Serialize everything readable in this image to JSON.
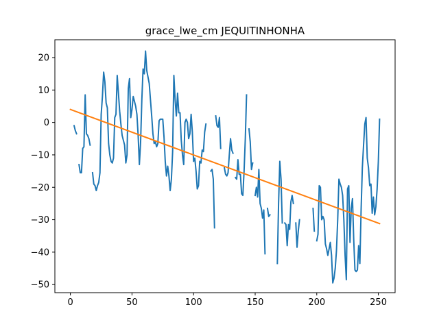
{
  "chart_data": {
    "type": "line",
    "title": "grace_lwe_cm JEQUITINHONHA",
    "xlabel": "",
    "ylabel": "",
    "xlim": [
      -12.6,
      263.6
    ],
    "ylim": [
      -52.5,
      25.5
    ],
    "xticks": [
      0,
      50,
      100,
      150,
      200,
      250
    ],
    "yticks": [
      -50,
      -40,
      -30,
      -20,
      -10,
      0,
      10,
      20
    ],
    "grid": false,
    "series": [
      {
        "color": "#1f77b4",
        "points": [
          [
            3,
            -1
          ],
          [
            4,
            -2.5
          ],
          [
            5,
            -3.5
          ],
          null,
          [
            7,
            -13
          ],
          [
            8,
            -15.5
          ],
          [
            9,
            -15.5
          ],
          [
            10,
            -8
          ],
          [
            11,
            -7.5
          ],
          [
            12,
            8.5
          ],
          [
            13,
            -3.5
          ],
          [
            14,
            -4
          ],
          [
            15,
            -5
          ],
          [
            16,
            -7
          ],
          null,
          [
            18,
            -15.5
          ],
          [
            19,
            -19
          ],
          [
            20,
            -19.5
          ],
          [
            21,
            -21
          ],
          [
            22,
            -19.5
          ],
          [
            23,
            -18.5
          ],
          [
            24,
            -15.5
          ],
          [
            25,
            2.5
          ],
          [
            26,
            8
          ],
          [
            27,
            15.5
          ],
          [
            28,
            12.5
          ],
          [
            29,
            6
          ],
          [
            30,
            4.5
          ],
          [
            31,
            -6.5
          ],
          [
            32,
            -10
          ],
          [
            33,
            -12
          ],
          [
            34,
            -12.5
          ],
          [
            35,
            -11
          ],
          [
            36,
            1.5
          ],
          [
            37,
            2.5
          ],
          [
            38,
            14.5
          ],
          [
            39,
            9
          ],
          [
            40,
            3.5
          ],
          [
            41,
            -0.5
          ],
          [
            42,
            -4
          ],
          [
            43,
            -5.5
          ],
          [
            44,
            -7
          ],
          [
            45,
            -12.5
          ],
          [
            46,
            -10
          ],
          [
            47,
            10.5
          ],
          [
            48,
            13.5
          ],
          [
            49,
            1.5
          ],
          [
            50,
            4
          ],
          [
            51,
            8
          ],
          [
            52,
            6.5
          ],
          [
            53,
            5
          ],
          [
            54,
            2.5
          ],
          [
            55,
            -4
          ],
          [
            56,
            -13
          ],
          [
            57,
            -6
          ],
          [
            58,
            7
          ],
          [
            59,
            16.5
          ],
          [
            60,
            15
          ],
          [
            61,
            22
          ],
          [
            62,
            16
          ],
          [
            63,
            14
          ],
          [
            64,
            12
          ],
          [
            65,
            7
          ],
          [
            66,
            2
          ],
          [
            67,
            -3.5
          ],
          [
            68,
            -6.5
          ],
          [
            69,
            -6
          ],
          [
            70,
            -7.5
          ],
          [
            71,
            -6.5
          ],
          [
            72,
            0.5
          ],
          [
            73,
            1
          ],
          [
            74,
            1
          ],
          [
            75,
            1
          ],
          [
            76,
            -4.5
          ],
          [
            77,
            -12
          ],
          [
            78,
            -16.5
          ],
          [
            79,
            -13.5
          ],
          [
            80,
            -16.5
          ],
          [
            81,
            -21
          ],
          [
            82,
            -17.5
          ],
          [
            83,
            -9
          ],
          [
            84,
            14.5
          ],
          [
            85,
            7
          ],
          [
            86,
            2
          ],
          [
            87,
            9
          ],
          [
            88,
            3
          ],
          [
            89,
            3
          ],
          [
            90,
            -5.5
          ],
          [
            91,
            -10
          ],
          [
            92,
            -13
          ],
          [
            93,
            0
          ],
          [
            94,
            1
          ],
          [
            95,
            0
          ],
          [
            96,
            -5
          ],
          [
            97,
            -3.5
          ],
          [
            98,
            2.5
          ],
          [
            99,
            -3
          ],
          [
            100,
            -12
          ],
          [
            101,
            -11
          ],
          [
            102,
            -15
          ],
          [
            103,
            -20.5
          ],
          [
            104,
            -19.5
          ],
          [
            105,
            -12
          ],
          [
            106,
            -12.5
          ],
          [
            107,
            -8.5
          ],
          [
            108,
            -9
          ],
          [
            109,
            -3
          ],
          [
            110,
            -0.5
          ],
          null,
          [
            114,
            -15
          ],
          [
            115,
            -14.5
          ],
          [
            116,
            -17.5
          ],
          [
            117,
            -32.5
          ],
          null,
          [
            118,
            2
          ],
          [
            119,
            -1
          ],
          [
            120,
            -1.5
          ],
          [
            121,
            1.5
          ],
          [
            122,
            -8
          ],
          null,
          [
            125,
            -14
          ],
          [
            126,
            -16
          ],
          [
            127,
            -16.5
          ],
          [
            128,
            -15.5
          ],
          [
            129,
            -10
          ],
          [
            130,
            -5
          ],
          [
            131,
            -8.5
          ],
          [
            132,
            -9.5
          ],
          null,
          [
            134,
            -17
          ],
          [
            135,
            -17.5
          ],
          [
            136,
            -11.5
          ],
          [
            137,
            -16
          ],
          [
            138,
            -16
          ],
          [
            139,
            -22
          ],
          [
            140,
            -22.5
          ],
          [
            141,
            -15
          ],
          [
            142,
            -5
          ],
          [
            143,
            8.5
          ],
          null,
          [
            145,
            -2
          ],
          [
            146,
            -6
          ],
          [
            147,
            -14.5
          ],
          [
            148,
            -12.5
          ],
          null,
          [
            150,
            -22.5
          ],
          [
            151,
            -20
          ],
          [
            152,
            -23
          ],
          [
            153,
            -14.5
          ],
          [
            154,
            -25
          ],
          [
            155,
            -26.5
          ],
          [
            156,
            -29.5
          ],
          [
            157,
            -27
          ],
          [
            158,
            -40.5
          ],
          null,
          [
            160,
            -26.5
          ],
          [
            161,
            -29
          ],
          [
            162,
            -28.5
          ],
          null,
          [
            168,
            -43.5
          ],
          [
            169,
            -25
          ],
          [
            170,
            -12
          ],
          [
            171,
            -17.5
          ],
          [
            172,
            -31
          ],
          null,
          [
            174,
            -31
          ],
          [
            175,
            -31.5
          ],
          [
            176,
            -38
          ],
          [
            177,
            -31.5
          ],
          [
            178,
            -33
          ],
          [
            179,
            -24.5
          ],
          [
            180,
            -22.5
          ],
          [
            181,
            -25
          ],
          null,
          [
            183,
            -31
          ],
          [
            184,
            -38.5
          ],
          [
            185,
            -33.5
          ],
          [
            186,
            -30
          ],
          null,
          [
            197,
            -26.5
          ],
          [
            198,
            -33.5
          ],
          null,
          [
            200,
            -36.5
          ],
          [
            201,
            -34.5
          ],
          [
            202,
            -19.5
          ],
          [
            203,
            -20
          ],
          [
            204,
            -30
          ],
          [
            205,
            -29
          ],
          [
            206,
            -30
          ],
          [
            207,
            -37.5
          ],
          [
            208,
            -39
          ],
          [
            209,
            -41
          ],
          [
            210,
            -39
          ],
          [
            211,
            -37
          ],
          [
            212,
            -41
          ],
          [
            213,
            -49.5
          ],
          [
            214,
            -48
          ],
          [
            215,
            -45
          ],
          [
            216,
            -39.5
          ],
          [
            217,
            -30
          ],
          [
            218,
            -17.5
          ],
          [
            219,
            -19
          ],
          [
            220,
            -20
          ],
          [
            221,
            -22.5
          ],
          [
            222,
            -30
          ],
          [
            223,
            -41
          ],
          [
            224,
            -48.5
          ],
          [
            225,
            -20.5
          ],
          [
            226,
            -19.5
          ],
          [
            227,
            -37
          ],
          [
            228,
            -26.5
          ],
          [
            229,
            -23.5
          ],
          [
            230,
            -36
          ],
          [
            231,
            -45.5
          ],
          [
            232,
            -46
          ],
          [
            233,
            -45.5
          ],
          [
            234,
            -38
          ],
          [
            235,
            -43.5
          ],
          [
            236,
            -27
          ],
          [
            237,
            -14
          ],
          [
            238,
            -7
          ],
          [
            239,
            -0.5
          ],
          [
            240,
            1.5
          ],
          [
            241,
            -11
          ],
          [
            242,
            -14
          ],
          [
            243,
            -19.5
          ],
          [
            244,
            -19
          ],
          [
            245,
            -28
          ],
          [
            246,
            -23
          ],
          [
            247,
            -28.5
          ],
          [
            248,
            -26
          ],
          [
            249,
            -20.5
          ],
          [
            250,
            -12
          ],
          [
            251,
            1
          ]
        ]
      },
      {
        "color": "#ff7f0e",
        "points": [
          [
            0,
            4
          ],
          [
            251,
            -31.2
          ]
        ]
      }
    ]
  }
}
